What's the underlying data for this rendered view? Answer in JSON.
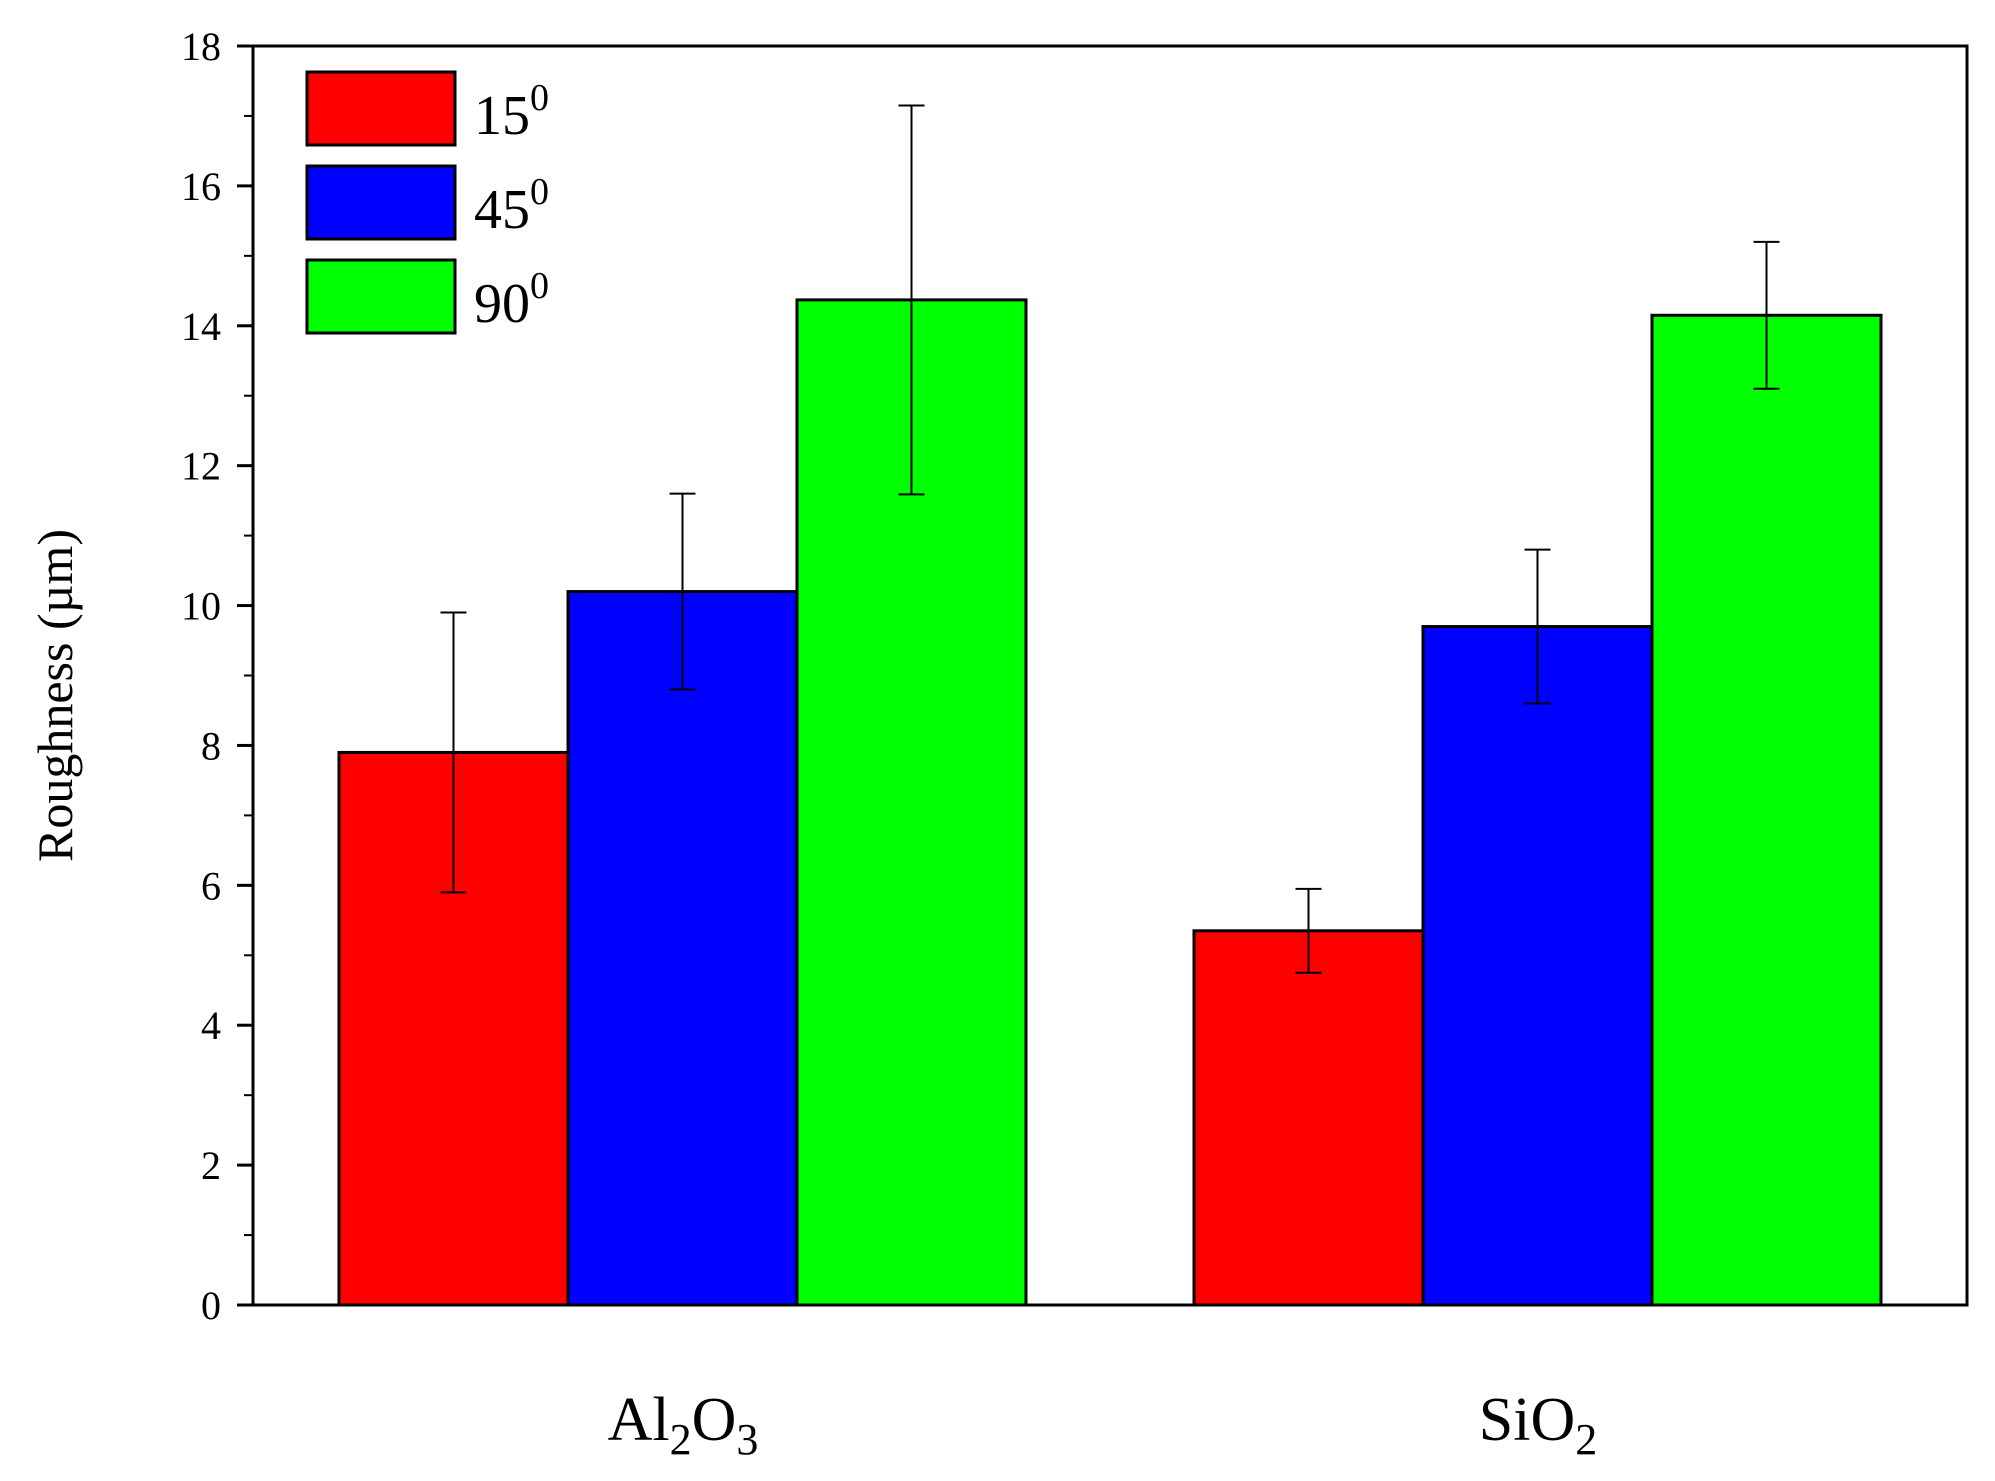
{
  "chart_data": {
    "type": "bar",
    "title": "",
    "xlabel": "",
    "ylabel": "Roughness (µm)",
    "ylim": [
      0,
      18
    ],
    "yticks": [
      0,
      2,
      4,
      6,
      8,
      10,
      12,
      14,
      16,
      18
    ],
    "grid": false,
    "legend_position": "top-left",
    "categories": [
      {
        "base": "Al",
        "sub1": "2",
        "mid": "O",
        "sub2": "3"
      },
      {
        "base": "SiO",
        "sub1": "2",
        "mid": "",
        "sub2": ""
      }
    ],
    "series": [
      {
        "name": "15",
        "sup": "0",
        "color": "#ff0000",
        "values": [
          7.9,
          5.35
        ],
        "errors": [
          2.0,
          0.6
        ]
      },
      {
        "name": "45",
        "sup": "0",
        "color": "#0000ff",
        "values": [
          10.2,
          9.7
        ],
        "errors": [
          1.4,
          1.1
        ]
      },
      {
        "name": "90",
        "sup": "0",
        "color": "#00ff00",
        "values": [
          14.37,
          14.15
        ],
        "errors": [
          2.78,
          1.05
        ]
      }
    ]
  }
}
